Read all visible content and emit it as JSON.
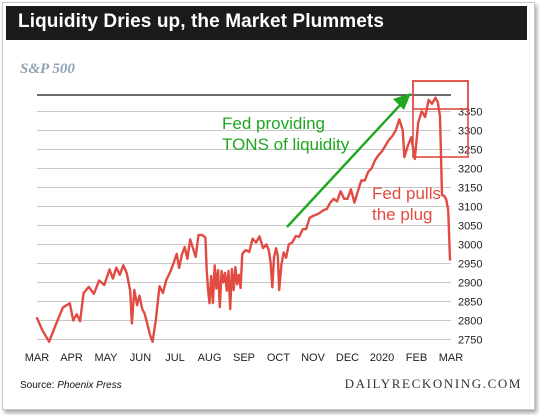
{
  "header": {
    "title": "Liquidity Dries up, the Market Plummets",
    "subtitle": "S&P 500"
  },
  "footer": {
    "source_label": "Source:",
    "source_name": "Phoenix Press",
    "brand": "DAILYRECKONING.COM"
  },
  "colors": {
    "line": "#e14b42",
    "annotation_green": "#1fa81f",
    "annotation_red": "#e14b42",
    "grid": "#b5b5b5",
    "title_bg": "#1b1b1b"
  },
  "chart_data": {
    "type": "line",
    "x_labels": [
      "MAR",
      "APR",
      "MAY",
      "JUN",
      "JUL",
      "AUG",
      "SEP",
      "OCT",
      "NOV",
      "DEC",
      "2020",
      "FEB",
      "MAR"
    ],
    "y_ticks": [
      2750,
      2800,
      2850,
      2900,
      2950,
      3000,
      3050,
      3100,
      3150,
      3200,
      3250,
      3300,
      3350
    ],
    "ylim": [
      2730,
      3393
    ],
    "y_axis_side": "right",
    "grid": "horizontal",
    "series": [
      {
        "values": [
          [
            0.0,
            2806
          ],
          [
            0.15,
            2775
          ],
          [
            0.35,
            2744
          ],
          [
            0.55,
            2790
          ],
          [
            0.75,
            2834
          ],
          [
            0.95,
            2845
          ],
          [
            1.05,
            2800
          ],
          [
            1.15,
            2816
          ],
          [
            1.25,
            2798
          ],
          [
            1.35,
            2872
          ],
          [
            1.5,
            2888
          ],
          [
            1.65,
            2870
          ],
          [
            1.8,
            2905
          ],
          [
            1.95,
            2893
          ],
          [
            2.1,
            2934
          ],
          [
            2.2,
            2910
          ],
          [
            2.3,
            2939
          ],
          [
            2.4,
            2920
          ],
          [
            2.5,
            2945
          ],
          [
            2.6,
            2925
          ],
          [
            2.7,
            2878
          ],
          [
            2.75,
            2792
          ],
          [
            2.82,
            2880
          ],
          [
            2.9,
            2840
          ],
          [
            2.97,
            2865
          ],
          [
            3.05,
            2830
          ],
          [
            3.12,
            2818
          ],
          [
            3.2,
            2790
          ],
          [
            3.28,
            2760
          ],
          [
            3.35,
            2744
          ],
          [
            3.45,
            2805
          ],
          [
            3.55,
            2890
          ],
          [
            3.65,
            2872
          ],
          [
            3.75,
            2907
          ],
          [
            3.85,
            2925
          ],
          [
            3.95,
            2948
          ],
          [
            4.05,
            2975
          ],
          [
            4.12,
            2938
          ],
          [
            4.2,
            2973
          ],
          [
            4.28,
            2993
          ],
          [
            4.36,
            2962
          ],
          [
            4.44,
            3013
          ],
          [
            4.52,
            2990
          ],
          [
            4.6,
            2967
          ],
          [
            4.68,
            3025
          ],
          [
            4.78,
            3025
          ],
          [
            4.88,
            3018
          ],
          [
            4.92,
            2932
          ],
          [
            4.96,
            2880
          ],
          [
            5.0,
            2845
          ],
          [
            5.05,
            2917
          ],
          [
            5.1,
            2846
          ],
          [
            5.15,
            2945
          ],
          [
            5.2,
            2884
          ],
          [
            5.25,
            2932
          ],
          [
            5.3,
            2835
          ],
          [
            5.35,
            2930
          ],
          [
            5.4,
            2900
          ],
          [
            5.45,
            2925
          ],
          [
            5.5,
            2878
          ],
          [
            5.55,
            2930
          ],
          [
            5.6,
            2830
          ],
          [
            5.65,
            2935
          ],
          [
            5.7,
            2880
          ],
          [
            5.75,
            2940
          ],
          [
            5.8,
            2895
          ],
          [
            5.85,
            2920
          ],
          [
            5.9,
            2885
          ],
          [
            5.95,
            2975
          ],
          [
            6.05,
            2985
          ],
          [
            6.15,
            2980
          ],
          [
            6.25,
            3015
          ],
          [
            6.35,
            3005
          ],
          [
            6.45,
            3021
          ],
          [
            6.55,
            2990
          ],
          [
            6.65,
            3000
          ],
          [
            6.72,
            2985
          ],
          [
            6.77,
            2952
          ],
          [
            6.82,
            2887
          ],
          [
            6.87,
            2965
          ],
          [
            6.93,
            2990
          ],
          [
            6.98,
            2970
          ],
          [
            7.02,
            2880
          ],
          [
            7.08,
            2945
          ],
          [
            7.15,
            2979
          ],
          [
            7.22,
            2965
          ],
          [
            7.3,
            3000
          ],
          [
            7.4,
            3005
          ],
          [
            7.5,
            3022
          ],
          [
            7.6,
            3020
          ],
          [
            7.7,
            3040
          ],
          [
            7.8,
            3040
          ],
          [
            7.9,
            3070
          ],
          [
            8.0,
            3075
          ],
          [
            8.1,
            3078
          ],
          [
            8.2,
            3083
          ],
          [
            8.3,
            3090
          ],
          [
            8.4,
            3093
          ],
          [
            8.5,
            3110
          ],
          [
            8.6,
            3120
          ],
          [
            8.7,
            3113
          ],
          [
            8.8,
            3140
          ],
          [
            8.9,
            3120
          ],
          [
            9.0,
            3120
          ],
          [
            9.1,
            3145
          ],
          [
            9.2,
            3110
          ],
          [
            9.3,
            3140
          ],
          [
            9.4,
            3168
          ],
          [
            9.5,
            3168
          ],
          [
            9.6,
            3191
          ],
          [
            9.7,
            3200
          ],
          [
            9.8,
            3222
          ],
          [
            9.9,
            3235
          ],
          [
            10.0,
            3245
          ],
          [
            10.1,
            3260
          ],
          [
            10.2,
            3275
          ],
          [
            10.3,
            3285
          ],
          [
            10.4,
            3300
          ],
          [
            10.5,
            3329
          ],
          [
            10.6,
            3300
          ],
          [
            10.65,
            3230
          ],
          [
            10.75,
            3260
          ],
          [
            10.85,
            3282
          ],
          [
            10.95,
            3225
          ],
          [
            11.05,
            3320
          ],
          [
            11.15,
            3350
          ],
          [
            11.25,
            3335
          ],
          [
            11.35,
            3380
          ],
          [
            11.45,
            3370
          ],
          [
            11.55,
            3386
          ],
          [
            11.62,
            3373
          ],
          [
            11.68,
            3337
          ],
          [
            11.74,
            3130
          ],
          [
            11.8,
            3128
          ],
          [
            11.86,
            3118
          ],
          [
            11.92,
            3090
          ],
          [
            11.97,
            2960
          ]
        ]
      }
    ],
    "annotations": [
      {
        "text_lines": [
          "Fed providing",
          "TONS of liquidity"
        ],
        "color": "green",
        "kind": "arrow"
      },
      {
        "text_lines": [
          "Fed pulls",
          "the plug"
        ],
        "color": "red",
        "kind": "label"
      }
    ]
  }
}
